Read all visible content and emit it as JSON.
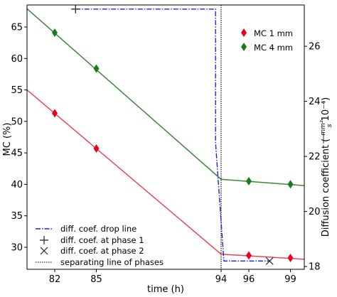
{
  "chart_data": {
    "type": "line",
    "xlabel": "time (h)",
    "ylabel_left": "MC (%)",
    "ylabel_right_parts": [
      "Diffusion coefficient (",
      "mm²",
      "s",
      " 10⁻⁴)"
    ],
    "xlim": [
      80,
      100
    ],
    "ylim_left": [
      26.5,
      68.5
    ],
    "ylim_right": [
      17.9,
      27.5
    ],
    "x_ticks": [
      82,
      85,
      94,
      96,
      99
    ],
    "y_ticks_left": [
      30,
      35,
      40,
      45,
      50,
      55,
      60,
      65
    ],
    "y_ticks_right": [
      18,
      20,
      22,
      24,
      26
    ],
    "colors": {
      "mc1": "#e8001c",
      "mc4": "#1c7a1c",
      "mc1_line": "#e84855",
      "mc4_line": "#3a8a3a",
      "drop_line": "#2222dd",
      "frame": "#000000"
    },
    "series": [
      {
        "name": "MC 1 mm",
        "key": "mc1",
        "marker": "diamond",
        "points": [
          {
            "x": 82,
            "y": 51.3
          },
          {
            "x": 85,
            "y": 45.7
          },
          {
            "x": 96,
            "y": 28.7
          },
          {
            "x": 99,
            "y": 28.3
          }
        ],
        "fit": [
          {
            "x": 80,
            "y": 55.0
          },
          {
            "x": 94,
            "y": 28.9
          },
          {
            "x": 100,
            "y": 28.1
          }
        ]
      },
      {
        "name": "MC 4 mm",
        "key": "mc4",
        "marker": "diamond",
        "points": [
          {
            "x": 82,
            "y": 64.1
          },
          {
            "x": 85,
            "y": 58.4
          },
          {
            "x": 96,
            "y": 40.5
          },
          {
            "x": 99,
            "y": 40.0
          }
        ],
        "fit": [
          {
            "x": 80,
            "y": 67.9
          },
          {
            "x": 94,
            "y": 40.8
          },
          {
            "x": 100,
            "y": 39.8
          }
        ]
      }
    ],
    "drop_line": {
      "name": "diff. coef. drop line",
      "points": [
        {
          "x": 83.5,
          "y": 27.35
        },
        {
          "x": 93.6,
          "y": 27.35
        },
        {
          "x": 93.6,
          "y": 22.5
        },
        {
          "x": 94.2,
          "y": 18.2
        },
        {
          "x": 97.5,
          "y": 18.2
        }
      ]
    },
    "phase1_marker": {
      "name": "diff. coef. at phase 1",
      "x": 83.5,
      "y": 27.35
    },
    "phase2_marker": {
      "name": "diff. coef. at phase 2",
      "x": 97.5,
      "y": 18.2
    },
    "separator": {
      "name": "separating line of phases",
      "x": 94
    },
    "legend_top": [
      "MC 1 mm",
      "MC 4 mm"
    ],
    "legend_bottom": [
      "diff. coef. drop line",
      "diff. coef. at phase 1",
      "diff. coef. at phase 2",
      "separating line of phases"
    ]
  }
}
